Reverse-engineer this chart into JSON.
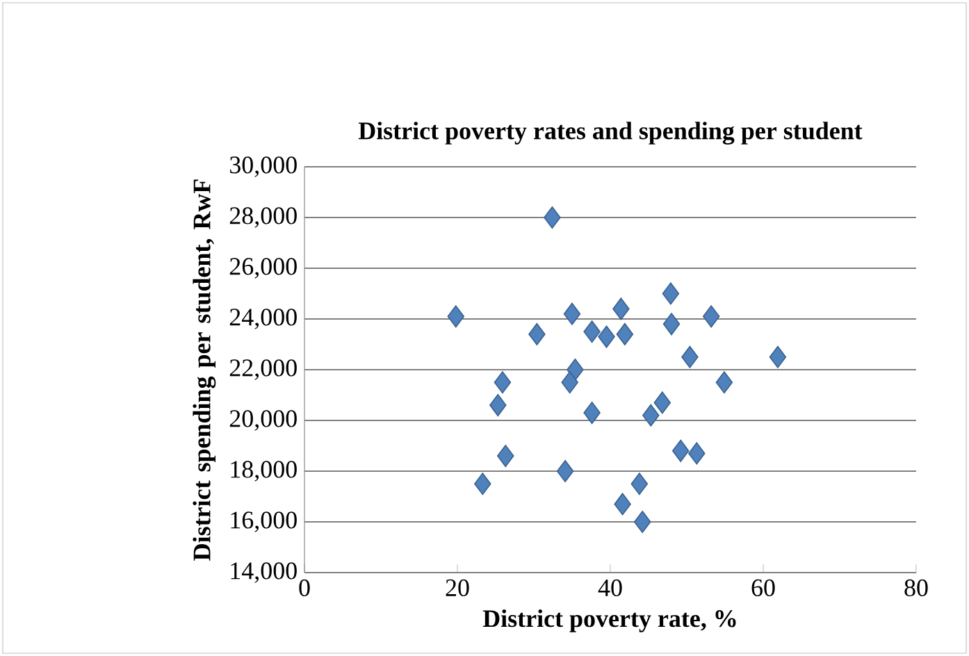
{
  "chart_data": {
    "type": "scatter",
    "title": "District poverty rates and spending per student",
    "xlabel": "District poverty rate, %",
    "ylabel": "District spending per student, RwF",
    "x": [
      19.8,
      30.4,
      35.0,
      37.6,
      39.5,
      41.4,
      41.9,
      25.9,
      25.3,
      35.4,
      34.7,
      37.6,
      26.3,
      23.3,
      34.1,
      41.6,
      47.9,
      48.0,
      53.2,
      50.4,
      61.9,
      54.9,
      46.8,
      45.3,
      49.2,
      51.3,
      43.8,
      44.2,
      32.4
    ],
    "values": [
      24100,
      23400,
      24200,
      23500,
      23300,
      24400,
      23400,
      21500,
      20600,
      22000,
      21500,
      20300,
      18600,
      17500,
      18000,
      16700,
      25000,
      23800,
      24100,
      22500,
      22500,
      21500,
      20700,
      20200,
      18800,
      18700,
      17500,
      16000,
      28000
    ],
    "color": "#4f81bd",
    "marker": "diamond",
    "grid": "y",
    "xlim": [
      0,
      80
    ],
    "xticks": [
      0,
      20,
      40,
      60,
      80
    ],
    "ylim": [
      14000,
      30000
    ],
    "yticks": [
      {
        "value": 14000,
        "label": "14,000"
      },
      {
        "value": 16000,
        "label": "16,000"
      },
      {
        "value": 18000,
        "label": "18,000"
      },
      {
        "value": 20000,
        "label": "20,000"
      },
      {
        "value": 22000,
        "label": "22,000"
      },
      {
        "value": 24000,
        "label": "24,000"
      },
      {
        "value": 26000,
        "label": "26,000"
      },
      {
        "value": 28000,
        "label": "28,000"
      },
      {
        "value": 30000,
        "label": "30,000"
      }
    ]
  }
}
